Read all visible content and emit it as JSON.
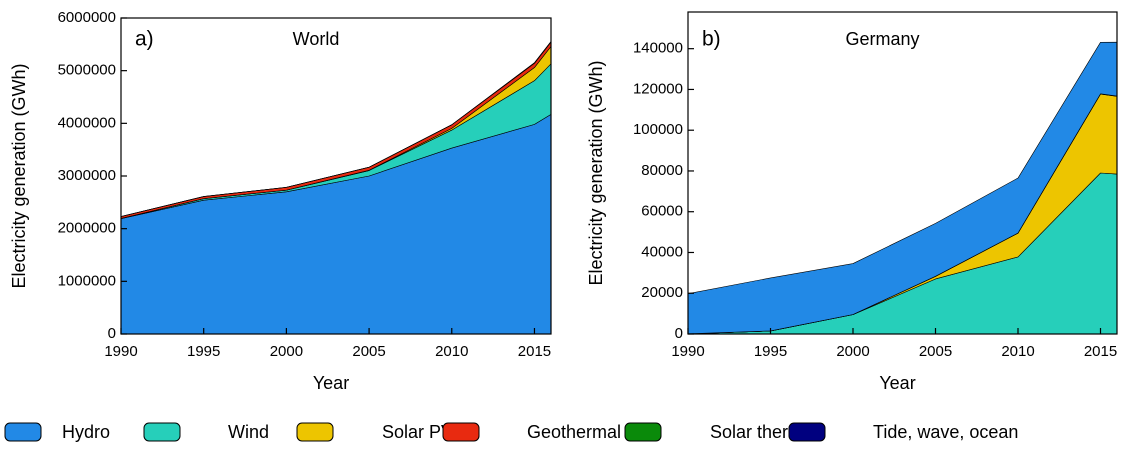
{
  "chart_data": [
    {
      "type": "stacked_area",
      "panel_label": "a)",
      "title": "World",
      "x_label": "Year",
      "y_label": "Electricity generation (GWh)",
      "x": [
        1990,
        1995,
        2000,
        2005,
        2010,
        2015,
        2016
      ],
      "xlim": [
        1990,
        2016
      ],
      "xticks": [
        1990,
        1995,
        2000,
        2005,
        2010,
        2015
      ],
      "ylim": [
        0,
        6000000
      ],
      "yticks": [
        0,
        1000000,
        2000000,
        3000000,
        4000000,
        5000000,
        6000000
      ],
      "series": [
        {
          "name": "Hydro",
          "color": "#2289e6",
          "values": [
            2190000,
            2540000,
            2700000,
            3000000,
            3530000,
            3980000,
            4170000
          ]
        },
        {
          "name": "Wind",
          "color": "#26cfba",
          "values": [
            4000,
            30000,
            31000,
            104000,
            342000,
            830000,
            960000
          ]
        },
        {
          "name": "Solar PV",
          "color": "#edc500",
          "values": [
            90,
            200,
            1000,
            4000,
            32000,
            250000,
            330000
          ]
        },
        {
          "name": "Geothermal",
          "color": "#e82a10",
          "values": [
            36000,
            40000,
            52000,
            58000,
            68000,
            80000,
            82000
          ]
        },
        {
          "name": "Solar thermal",
          "color": "#0a8a0a",
          "values": [
            660,
            800,
            500,
            600,
            1700,
            9500,
            11000
          ]
        },
        {
          "name": "Tide, wave, ocean",
          "color": "#00007f",
          "values": [
            600,
            600,
            600,
            550,
            500,
            1000,
            1000
          ]
        }
      ]
    },
    {
      "type": "stacked_area",
      "panel_label": "b)",
      "title": "Germany",
      "x_label": "Year",
      "y_label": "Electricity generation (GWh)",
      "x": [
        1990,
        1995,
        2000,
        2005,
        2010,
        2015,
        2016
      ],
      "xlim": [
        1990,
        2016
      ],
      "xticks": [
        1990,
        1995,
        2000,
        2005,
        2010,
        2015
      ],
      "ylim": [
        0,
        158000
      ],
      "yticks": [
        0,
        20000,
        40000,
        60000,
        80000,
        100000,
        120000,
        140000
      ],
      "series": [
        {
          "name": "Wind",
          "color": "#26cfba",
          "values": [
            70,
            1500,
            9500,
            27000,
            37800,
            79000,
            78500
          ]
        },
        {
          "name": "Solar PV",
          "color": "#edc500",
          "values": [
            1,
            7,
            60,
            1300,
            11700,
            38700,
            38100
          ]
        },
        {
          "name": "Geothermal",
          "color": "#e82a10",
          "values": [
            0,
            0,
            0,
            0.2,
            28,
            133,
            175
          ]
        },
        {
          "name": "Solar thermal",
          "color": "#0a8a0a",
          "values": [
            0,
            0,
            0,
            0,
            0,
            0,
            0
          ]
        },
        {
          "name": "Tide, wave, ocean",
          "color": "#00007f",
          "values": [
            0,
            0,
            0,
            0,
            0,
            0,
            0
          ]
        },
        {
          "name": "Hydro",
          "color": "#2289e6",
          "values": [
            19700,
            26000,
            25000,
            26000,
            27000,
            25300,
            26400
          ]
        }
      ]
    }
  ]
}
